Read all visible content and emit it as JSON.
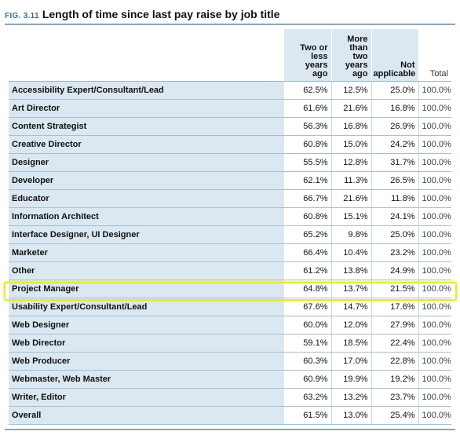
{
  "figure": {
    "label": "FIG. 3.11",
    "title": "Length of time since last pay raise by job title"
  },
  "colors": {
    "row_label_bg": "#dbe8f1",
    "rule": "#8aa6b6",
    "highlight": "#e4e83a"
  },
  "chart_data": {
    "type": "table",
    "title": "Length of time since last pay raise by job title",
    "columns": [
      {
        "label": "Two or less years ago",
        "lines": [
          "Two or",
          "less",
          "years",
          "ago"
        ]
      },
      {
        "label": "More than two years ago",
        "lines": [
          "More",
          "than",
          "two",
          "years",
          "ago"
        ]
      },
      {
        "label": "Not applicable",
        "lines": [
          "Not",
          "applicable"
        ]
      },
      {
        "label": "Total",
        "lines": [
          "Total"
        ]
      }
    ],
    "highlighted_row": "Project Manager",
    "rows": [
      {
        "label": "Accessibility Expert/Consultant/Lead",
        "values": [
          "62.5%",
          "12.5%",
          "25.0%",
          "100.0%"
        ]
      },
      {
        "label": "Art Director",
        "values": [
          "61.6%",
          "21.6%",
          "16.8%",
          "100.0%"
        ]
      },
      {
        "label": "Content Strategist",
        "values": [
          "56.3%",
          "16.8%",
          "26.9%",
          "100.0%"
        ]
      },
      {
        "label": "Creative Director",
        "values": [
          "60.8%",
          "15.0%",
          "24.2%",
          "100.0%"
        ]
      },
      {
        "label": "Designer",
        "values": [
          "55.5%",
          "12.8%",
          "31.7%",
          "100.0%"
        ]
      },
      {
        "label": "Developer",
        "values": [
          "62.1%",
          "11.3%",
          "26.5%",
          "100.0%"
        ]
      },
      {
        "label": "Educator",
        "values": [
          "66.7%",
          "21.6%",
          "11.8%",
          "100.0%"
        ]
      },
      {
        "label": "Information Architect",
        "values": [
          "60.8%",
          "15.1%",
          "24.1%",
          "100.0%"
        ]
      },
      {
        "label": "Interface Designer, UI Designer",
        "values": [
          "65.2%",
          "9.8%",
          "25.0%",
          "100.0%"
        ]
      },
      {
        "label": "Marketer",
        "values": [
          "66.4%",
          "10.4%",
          "23.2%",
          "100.0%"
        ]
      },
      {
        "label": "Other",
        "values": [
          "61.2%",
          "13.8%",
          "24.9%",
          "100.0%"
        ]
      },
      {
        "label": "Project Manager",
        "values": [
          "64.8%",
          "13.7%",
          "21.5%",
          "100.0%"
        ]
      },
      {
        "label": "Usability Expert/Consultant/Lead",
        "values": [
          "67.6%",
          "14.7%",
          "17.6%",
          "100.0%"
        ]
      },
      {
        "label": "Web Designer",
        "values": [
          "60.0%",
          "12.0%",
          "27.9%",
          "100.0%"
        ]
      },
      {
        "label": "Web Director",
        "values": [
          "59.1%",
          "18.5%",
          "22.4%",
          "100.0%"
        ]
      },
      {
        "label": "Web Producer",
        "values": [
          "60.3%",
          "17.0%",
          "22.8%",
          "100.0%"
        ]
      },
      {
        "label": "Webmaster, Web Master",
        "values": [
          "60.9%",
          "19.9%",
          "19.2%",
          "100.0%"
        ]
      },
      {
        "label": "Writer, Editor",
        "values": [
          "63.2%",
          "13.2%",
          "23.7%",
          "100.0%"
        ]
      },
      {
        "label": "Overall",
        "values": [
          "61.5%",
          "13.0%",
          "25.4%",
          "100.0%"
        ]
      }
    ]
  }
}
